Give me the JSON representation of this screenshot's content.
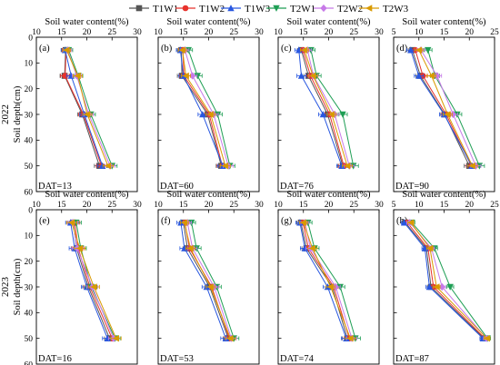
{
  "chart_data": {
    "type": "line",
    "orientation": "depth-profile",
    "legend": {
      "placement": "top",
      "series": [
        {
          "name": "T1W1",
          "color": "#555555",
          "marker": "square"
        },
        {
          "name": "T1W2",
          "color": "#e8322c",
          "marker": "circle"
        },
        {
          "name": "T1W3",
          "color": "#2857e0",
          "marker": "triangle-up"
        },
        {
          "name": "T2W1",
          "color": "#1e9e54",
          "marker": "triangle-down"
        },
        {
          "name": "T2W2",
          "color": "#c77ae8",
          "marker": "diamond"
        },
        {
          "name": "T2W3",
          "color": "#d99a00",
          "marker": "triangle-left"
        }
      ]
    },
    "x_axis": {
      "label": "Soil water content(%)",
      "position": "top",
      "panels": [
        {
          "range": [
            10,
            30
          ],
          "ticks": [
            10,
            15,
            20,
            25,
            30
          ]
        },
        {
          "range": [
            10,
            30
          ],
          "ticks": [
            10,
            15,
            20,
            25,
            30
          ]
        },
        {
          "range": [
            10,
            30
          ],
          "ticks": [
            10,
            15,
            20,
            25,
            30
          ]
        },
        {
          "range": [
            5,
            25
          ],
          "ticks": [
            5,
            10,
            15,
            20,
            25
          ]
        }
      ]
    },
    "y_axis": {
      "label": "Soil depth(cm)",
      "range": [
        0,
        60
      ],
      "ticks": [
        0,
        10,
        20,
        30,
        40,
        50,
        60
      ],
      "inverted": true
    },
    "depths": [
      5,
      15,
      30,
      50
    ],
    "rows": [
      {
        "year": "2022",
        "panels": [
          {
            "letter": "(a)",
            "dat": "DAT=13",
            "series": [
              [
                15.8,
                15.6,
                19.1,
                22.5
              ],
              [
                15.9,
                15.7,
                19.3,
                22.9
              ],
              [
                15.7,
                16.9,
                19.5,
                23.1
              ],
              [
                16.4,
                18.3,
                20.8,
                25.0
              ],
              [
                16.2,
                18.0,
                20.4,
                24.6
              ],
              [
                16.0,
                18.2,
                20.1,
                24.2
              ]
            ],
            "err": [
              0.8,
              0.9,
              0.9,
              1.0
            ]
          },
          {
            "letter": "(b)",
            "dat": "DAT=60",
            "series": [
              [
                14.6,
                14.7,
                19.8,
                22.5
              ],
              [
                14.9,
                15.1,
                20.1,
                22.7
              ],
              [
                14.4,
                15.0,
                18.8,
                22.8
              ],
              [
                16.0,
                17.8,
                21.8,
                24.2
              ],
              [
                15.3,
                16.8,
                21.0,
                23.9
              ],
              [
                14.8,
                15.5,
                20.4,
                23.3
              ]
            ],
            "err": [
              0.8,
              0.9,
              0.9,
              1.0
            ]
          },
          {
            "letter": "(c)",
            "dat": "DAT=76",
            "series": [
              [
                14.6,
                16.0,
                19.8,
                22.8
              ],
              [
                14.9,
                16.4,
                20.2,
                23.0
              ],
              [
                14.1,
                14.6,
                18.9,
                22.6
              ],
              [
                16.5,
                17.6,
                22.8,
                24.9
              ],
              [
                15.8,
                17.0,
                21.2,
                24.1
              ],
              [
                15.2,
                16.9,
                20.6,
                23.7
              ]
            ],
            "err": [
              0.8,
              0.9,
              0.9,
              1.0
            ]
          },
          {
            "letter": "(d)",
            "dat": "DAT=90",
            "series": [
              [
                8.7,
                10.3,
                15.1,
                20.0
              ],
              [
                9.3,
                10.8,
                15.4,
                20.4
              ],
              [
                8.4,
                10.0,
                15.0,
                20.5
              ],
              [
                11.8,
                13.2,
                17.6,
                22.0
              ],
              [
                10.4,
                13.6,
                16.8,
                21.3
              ],
              [
                10.0,
                12.5,
                15.7,
                20.6
              ]
            ],
            "err": [
              0.8,
              0.9,
              0.9,
              1.0
            ]
          }
        ]
      },
      {
        "year": "2023",
        "panels": [
          {
            "letter": "(e)",
            "dat": "DAT=16",
            "series": [
              [
                17.3,
                18.0,
                20.3,
                24.5
              ],
              [
                17.6,
                18.3,
                20.6,
                25.0
              ],
              [
                16.8,
                17.6,
                20.0,
                24.1
              ],
              [
                17.9,
                18.8,
                20.9,
                25.6
              ],
              [
                17.2,
                18.1,
                21.1,
                25.3
              ],
              [
                17.0,
                18.6,
                21.4,
                25.8
              ]
            ],
            "err": [
              1.0,
              1.1,
              1.1,
              1.0
            ]
          },
          {
            "letter": "(f)",
            "dat": "DAT=53",
            "series": [
              [
                15.0,
                15.8,
                20.2,
                23.9
              ],
              [
                15.3,
                16.2,
                20.6,
                24.1
              ],
              [
                14.5,
                15.2,
                19.6,
                23.4
              ],
              [
                16.6,
                17.6,
                21.6,
                25.0
              ],
              [
                15.8,
                16.8,
                21.1,
                24.5
              ],
              [
                15.2,
                16.4,
                20.4,
                24.3
              ]
            ],
            "err": [
              0.8,
              0.9,
              0.9,
              1.0
            ]
          },
          {
            "letter": "(g)",
            "dat": "DAT=74",
            "series": [
              [
                14.5,
                15.6,
                20.7,
                23.7
              ],
              [
                14.9,
                16.0,
                21.0,
                24.1
              ],
              [
                14.3,
                15.3,
                19.8,
                23.5
              ],
              [
                15.9,
                17.2,
                22.3,
                25.3
              ],
              [
                15.3,
                16.4,
                21.4,
                24.6
              ],
              [
                15.0,
                16.8,
                20.4,
                24.3
              ]
            ],
            "err": [
              0.8,
              0.9,
              0.9,
              1.0
            ]
          },
          {
            "letter": "(h)",
            "dat": "DAT=87",
            "series": [
              [
                7.3,
                11.5,
                12.4,
                22.9
              ],
              [
                7.7,
                11.8,
                12.9,
                23.1
              ],
              [
                7.1,
                11.2,
                12.1,
                22.7
              ],
              [
                8.6,
                13.1,
                16.2,
                23.6
              ],
              [
                8.2,
                12.5,
                14.6,
                23.4
              ],
              [
                8.4,
                12.2,
                13.5,
                23.5
              ]
            ],
            "err": [
              0.6,
              0.6,
              0.7,
              0.6
            ]
          }
        ]
      }
    ]
  }
}
